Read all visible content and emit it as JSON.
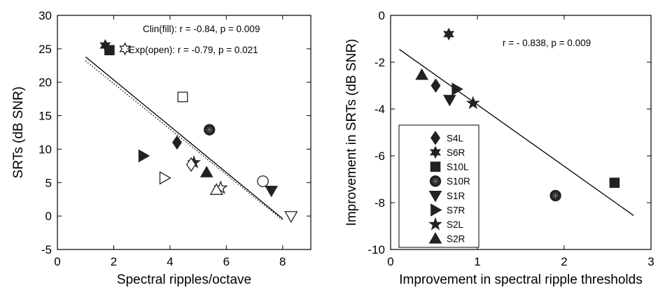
{
  "chart_data": [
    {
      "type": "scatter",
      "xlabel": "Spectral ripples/octave",
      "ylabel": "SRTs (dB SNR)",
      "xlim": [
        0,
        9
      ],
      "ylim": [
        -5,
        30
      ],
      "xticks": [
        "0",
        "2",
        "4",
        "6",
        "8"
      ],
      "yticks": [
        "-5",
        "0",
        "5",
        "10",
        "15",
        "20",
        "25",
        "30"
      ],
      "grid": false,
      "annotations": [
        "Clin(fill): r = -0.84, p = 0.009",
        "Exp(open): r = -0.79, p = 0.021"
      ],
      "series": [
        {
          "condition": "fill",
          "color": "#222222",
          "points": [
            {
              "x": 4.25,
              "y": 11.0,
              "marker": "diamond"
            },
            {
              "x": 1.7,
              "y": 25.5,
              "marker": "star6"
            },
            {
              "x": 1.85,
              "y": 24.8,
              "marker": "square"
            },
            {
              "x": 5.4,
              "y": 12.9,
              "marker": "circle"
            },
            {
              "x": 7.6,
              "y": 3.8,
              "marker": "triangle-down"
            },
            {
              "x": 3.05,
              "y": 9.0,
              "marker": "triangle-right"
            },
            {
              "x": 4.85,
              "y": 8.0,
              "marker": "star5"
            },
            {
              "x": 5.3,
              "y": 6.5,
              "marker": "triangle-up"
            }
          ]
        },
        {
          "condition": "open",
          "color": "#222222",
          "points": [
            {
              "x": 4.75,
              "y": 7.7,
              "marker": "diamond"
            },
            {
              "x": 2.4,
              "y": 25.0,
              "marker": "star6"
            },
            {
              "x": 4.45,
              "y": 17.8,
              "marker": "square"
            },
            {
              "x": 7.3,
              "y": 5.2,
              "marker": "circle"
            },
            {
              "x": 8.3,
              "y": 0.0,
              "marker": "triangle-down"
            },
            {
              "x": 3.8,
              "y": 5.7,
              "marker": "triangle-right"
            },
            {
              "x": 5.8,
              "y": 4.2,
              "marker": "star5"
            },
            {
              "x": 5.65,
              "y": 3.9,
              "marker": "triangle-up"
            }
          ]
        }
      ],
      "fit_lines": [
        {
          "for": "fill",
          "style": "solid",
          "x": [
            1.0,
            8.0
          ],
          "y": [
            23.8,
            -0.4
          ]
        },
        {
          "for": "open",
          "style": "dotted",
          "x": [
            1.0,
            8.0
          ],
          "y": [
            23.2,
            -0.6
          ]
        }
      ]
    },
    {
      "type": "scatter",
      "xlabel": "Improvement in spectral ripple thresholds",
      "ylabel": "Improvement in SRTs (dB SNR)",
      "xlim": [
        0,
        3
      ],
      "ylim": [
        -10,
        0
      ],
      "xticks": [
        "0",
        "1",
        "2",
        "3"
      ],
      "yticks": [
        "-10",
        "-8",
        "-6",
        "-4",
        "-2",
        "0"
      ],
      "grid": false,
      "annotations": [
        "r = - 0.838, p = 0.009"
      ],
      "legend_position": "lower-left",
      "legend": [
        {
          "label": "S4L",
          "marker": "diamond"
        },
        {
          "label": "S6R",
          "marker": "star6"
        },
        {
          "label": "S10L",
          "marker": "square"
        },
        {
          "label": "S10R",
          "marker": "circle"
        },
        {
          "label": "S1R",
          "marker": "triangle-down"
        },
        {
          "label": "S7R",
          "marker": "triangle-right"
        },
        {
          "label": "S2L",
          "marker": "star5"
        },
        {
          "label": "S2R",
          "marker": "triangle-up"
        }
      ],
      "points": [
        {
          "label": "S4L",
          "x": 0.52,
          "y": -3.0,
          "marker": "diamond"
        },
        {
          "label": "S6R",
          "x": 0.67,
          "y": -0.8,
          "marker": "star6"
        },
        {
          "label": "S10L",
          "x": 2.58,
          "y": -7.15,
          "marker": "square"
        },
        {
          "label": "S10R",
          "x": 1.9,
          "y": -7.7,
          "marker": "circle"
        },
        {
          "label": "S1R",
          "x": 0.68,
          "y": -3.6,
          "marker": "triangle-down"
        },
        {
          "label": "S7R",
          "x": 0.76,
          "y": -3.15,
          "marker": "triangle-right"
        },
        {
          "label": "S2L",
          "x": 0.95,
          "y": -3.75,
          "marker": "star5"
        },
        {
          "label": "S2R",
          "x": 0.36,
          "y": -2.55,
          "marker": "triangle-up"
        }
      ],
      "fit_lines": [
        {
          "style": "solid",
          "x": [
            0.1,
            2.8
          ],
          "y": [
            -1.45,
            -8.55
          ]
        }
      ]
    }
  ]
}
